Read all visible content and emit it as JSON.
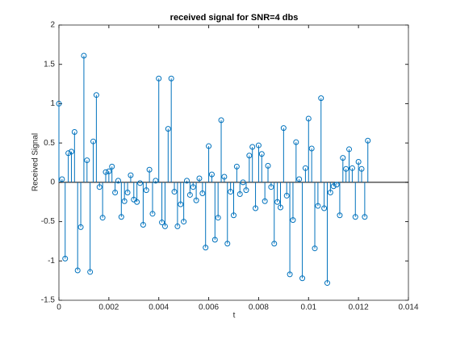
{
  "chart_data": {
    "type": "stem",
    "title": "received signal for SNR=4 dbs",
    "xlabel": "t",
    "ylabel": "Received Signal",
    "color": "#0072bd",
    "xlim": [
      0,
      0.014
    ],
    "xticks": [
      0,
      0.002,
      0.004,
      0.006,
      0.008,
      0.01,
      0.012,
      0.014
    ],
    "ylim": [
      -1.5,
      2
    ],
    "yticks": [
      -1.5,
      -1,
      -0.5,
      0,
      0.5,
      1,
      1.5,
      2
    ],
    "x": [
      0,
      0.000125,
      0.00025,
      0.000375,
      0.0005,
      0.000625,
      0.00075,
      0.000875,
      0.001,
      0.001125,
      0.00125,
      0.001375,
      0.0015,
      0.001625,
      0.00175,
      0.001875,
      0.002,
      0.002125,
      0.00225,
      0.002375,
      0.0025,
      0.002625,
      0.00275,
      0.002875,
      0.003,
      0.003125,
      0.00325,
      0.003375,
      0.0035,
      0.003625,
      0.00375,
      0.003875,
      0.004,
      0.004125,
      0.00425,
      0.004375,
      0.0045,
      0.004625,
      0.00475,
      0.004875,
      0.005,
      0.005125,
      0.00525,
      0.005375,
      0.0055,
      0.005625,
      0.00575,
      0.005875,
      0.006,
      0.006125,
      0.00625,
      0.006375,
      0.0065,
      0.006625,
      0.00675,
      0.006875,
      0.007,
      0.007125,
      0.00725,
      0.007375,
      0.0075,
      0.007625,
      0.00775,
      0.007875,
      0.008,
      0.008125,
      0.00825,
      0.008375,
      0.0085,
      0.008625,
      0.00875,
      0.008875,
      0.009,
      0.009125,
      0.00925,
      0.009375,
      0.0095,
      0.009625,
      0.00975,
      0.009875,
      0.01,
      0.010125,
      0.01025,
      0.010375,
      0.0105,
      0.010625,
      0.01075,
      0.010875,
      0.011,
      0.011125,
      0.01125,
      0.011375,
      0.0115,
      0.011625,
      0.01175,
      0.011875,
      0.012,
      0.012125,
      0.01225,
      0.012375
    ],
    "values": [
      1.0,
      0.04,
      -0.97,
      0.37,
      0.39,
      0.64,
      -1.12,
      -0.57,
      1.61,
      0.28,
      -1.14,
      0.52,
      1.11,
      -0.06,
      -0.45,
      0.13,
      0.14,
      0.2,
      -0.13,
      0.02,
      -0.44,
      -0.24,
      -0.13,
      0.09,
      -0.22,
      -0.25,
      -0.01,
      -0.54,
      -0.1,
      0.16,
      -0.4,
      0.02,
      1.32,
      -0.51,
      -0.56,
      0.68,
      1.32,
      -0.12,
      -0.56,
      -0.28,
      -0.5,
      0.02,
      -0.16,
      -0.06,
      -0.23,
      0.05,
      -0.14,
      -0.83,
      0.46,
      0.1,
      -0.73,
      -0.45,
      0.79,
      0.07,
      -0.78,
      -0.12,
      -0.42,
      0.2,
      -0.15,
      0.0,
      -0.1,
      0.34,
      0.45,
      -0.33,
      0.47,
      0.36,
      -0.24,
      0.21,
      -0.06,
      -0.78,
      -0.25,
      -0.32,
      0.69,
      -0.17,
      -1.17,
      -0.48,
      0.51,
      0.04,
      -1.22,
      0.18,
      0.81,
      0.43,
      -0.84,
      -0.3,
      1.07,
      -0.33,
      -1.28,
      -0.13,
      -0.05,
      -0.03,
      -0.42,
      0.31,
      0.17,
      0.42,
      0.18,
      -0.44,
      0.26,
      0.17,
      -0.44,
      0.53
    ]
  }
}
